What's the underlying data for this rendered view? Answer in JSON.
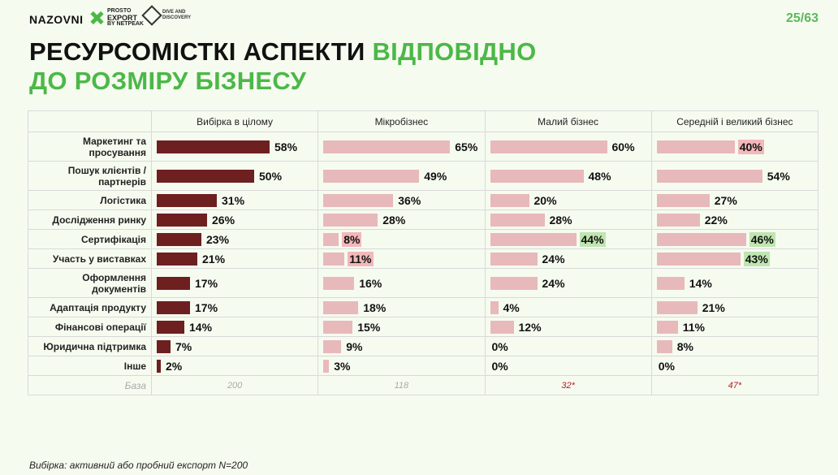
{
  "header": {
    "logo_nazovni": "NAZOVNI",
    "logo_prosto_line1": "PROSTO",
    "logo_prosto_line2": "EXPORT",
    "logo_prosto_line3": "BY NETPEAK",
    "logo_dive_line1": "DIVE AND",
    "logo_dive_line2": "DISCOVERY",
    "page_number": "25/63"
  },
  "title": {
    "part1": "РЕСУРСОМІСТКІ АСПЕКТИ ",
    "part2_green": "ВІДПОВІДНО",
    "line2_green": "ДО РОЗМІРУ БІЗНЕСУ"
  },
  "footnote": "Вибірка: активний або пробний експорт N=200",
  "colors": {
    "overall_bar": "#6e1f1f",
    "segment_bar": "#e8b9bb",
    "highlight_low": "#f2b8ba",
    "highlight_high": "#bfe6b0",
    "accent_green": "#4cb848"
  },
  "chart_data": {
    "type": "bar",
    "orientation": "horizontal",
    "unit": "%",
    "categories": [
      "Маркетинг та просування",
      "Пошук клієнтів / партнерів",
      "Логістика",
      "Дослідження ринку",
      "Сертифікація",
      "Участь у виставках",
      "Оформлення документів",
      "Адаптація продукту",
      "Фінансові операції",
      "Юридична підтримка",
      "Інше"
    ],
    "series": [
      {
        "name": "Вибірка в цілому",
        "values": [
          58,
          50,
          31,
          26,
          23,
          21,
          17,
          17,
          14,
          7,
          2
        ],
        "base": "200",
        "highlights": [
          "",
          "",
          "",
          "",
          "",
          "",
          "",
          "",
          "",
          "",
          ""
        ]
      },
      {
        "name": "Мікробізнес",
        "values": [
          65,
          49,
          36,
          28,
          8,
          11,
          16,
          18,
          15,
          9,
          3
        ],
        "base": "118",
        "highlights": [
          "",
          "",
          "",
          "",
          "low",
          "low",
          "",
          "",
          "",
          "",
          ""
        ]
      },
      {
        "name": "Малий бізнес",
        "values": [
          60,
          48,
          20,
          28,
          44,
          24,
          24,
          4,
          12,
          0,
          0
        ],
        "base": "32*",
        "highlights": [
          "",
          "",
          "",
          "",
          "high",
          "",
          "",
          "",
          "",
          "",
          ""
        ]
      },
      {
        "name": "Середній і великий бізнес",
        "values": [
          40,
          54,
          27,
          22,
          46,
          43,
          14,
          21,
          11,
          8,
          0
        ],
        "base": "47*",
        "highlights": [
          "low",
          "",
          "",
          "",
          "high",
          "high",
          "",
          "",
          "",
          "",
          ""
        ]
      }
    ],
    "base_label": "База",
    "xlim": [
      0,
      100
    ]
  }
}
